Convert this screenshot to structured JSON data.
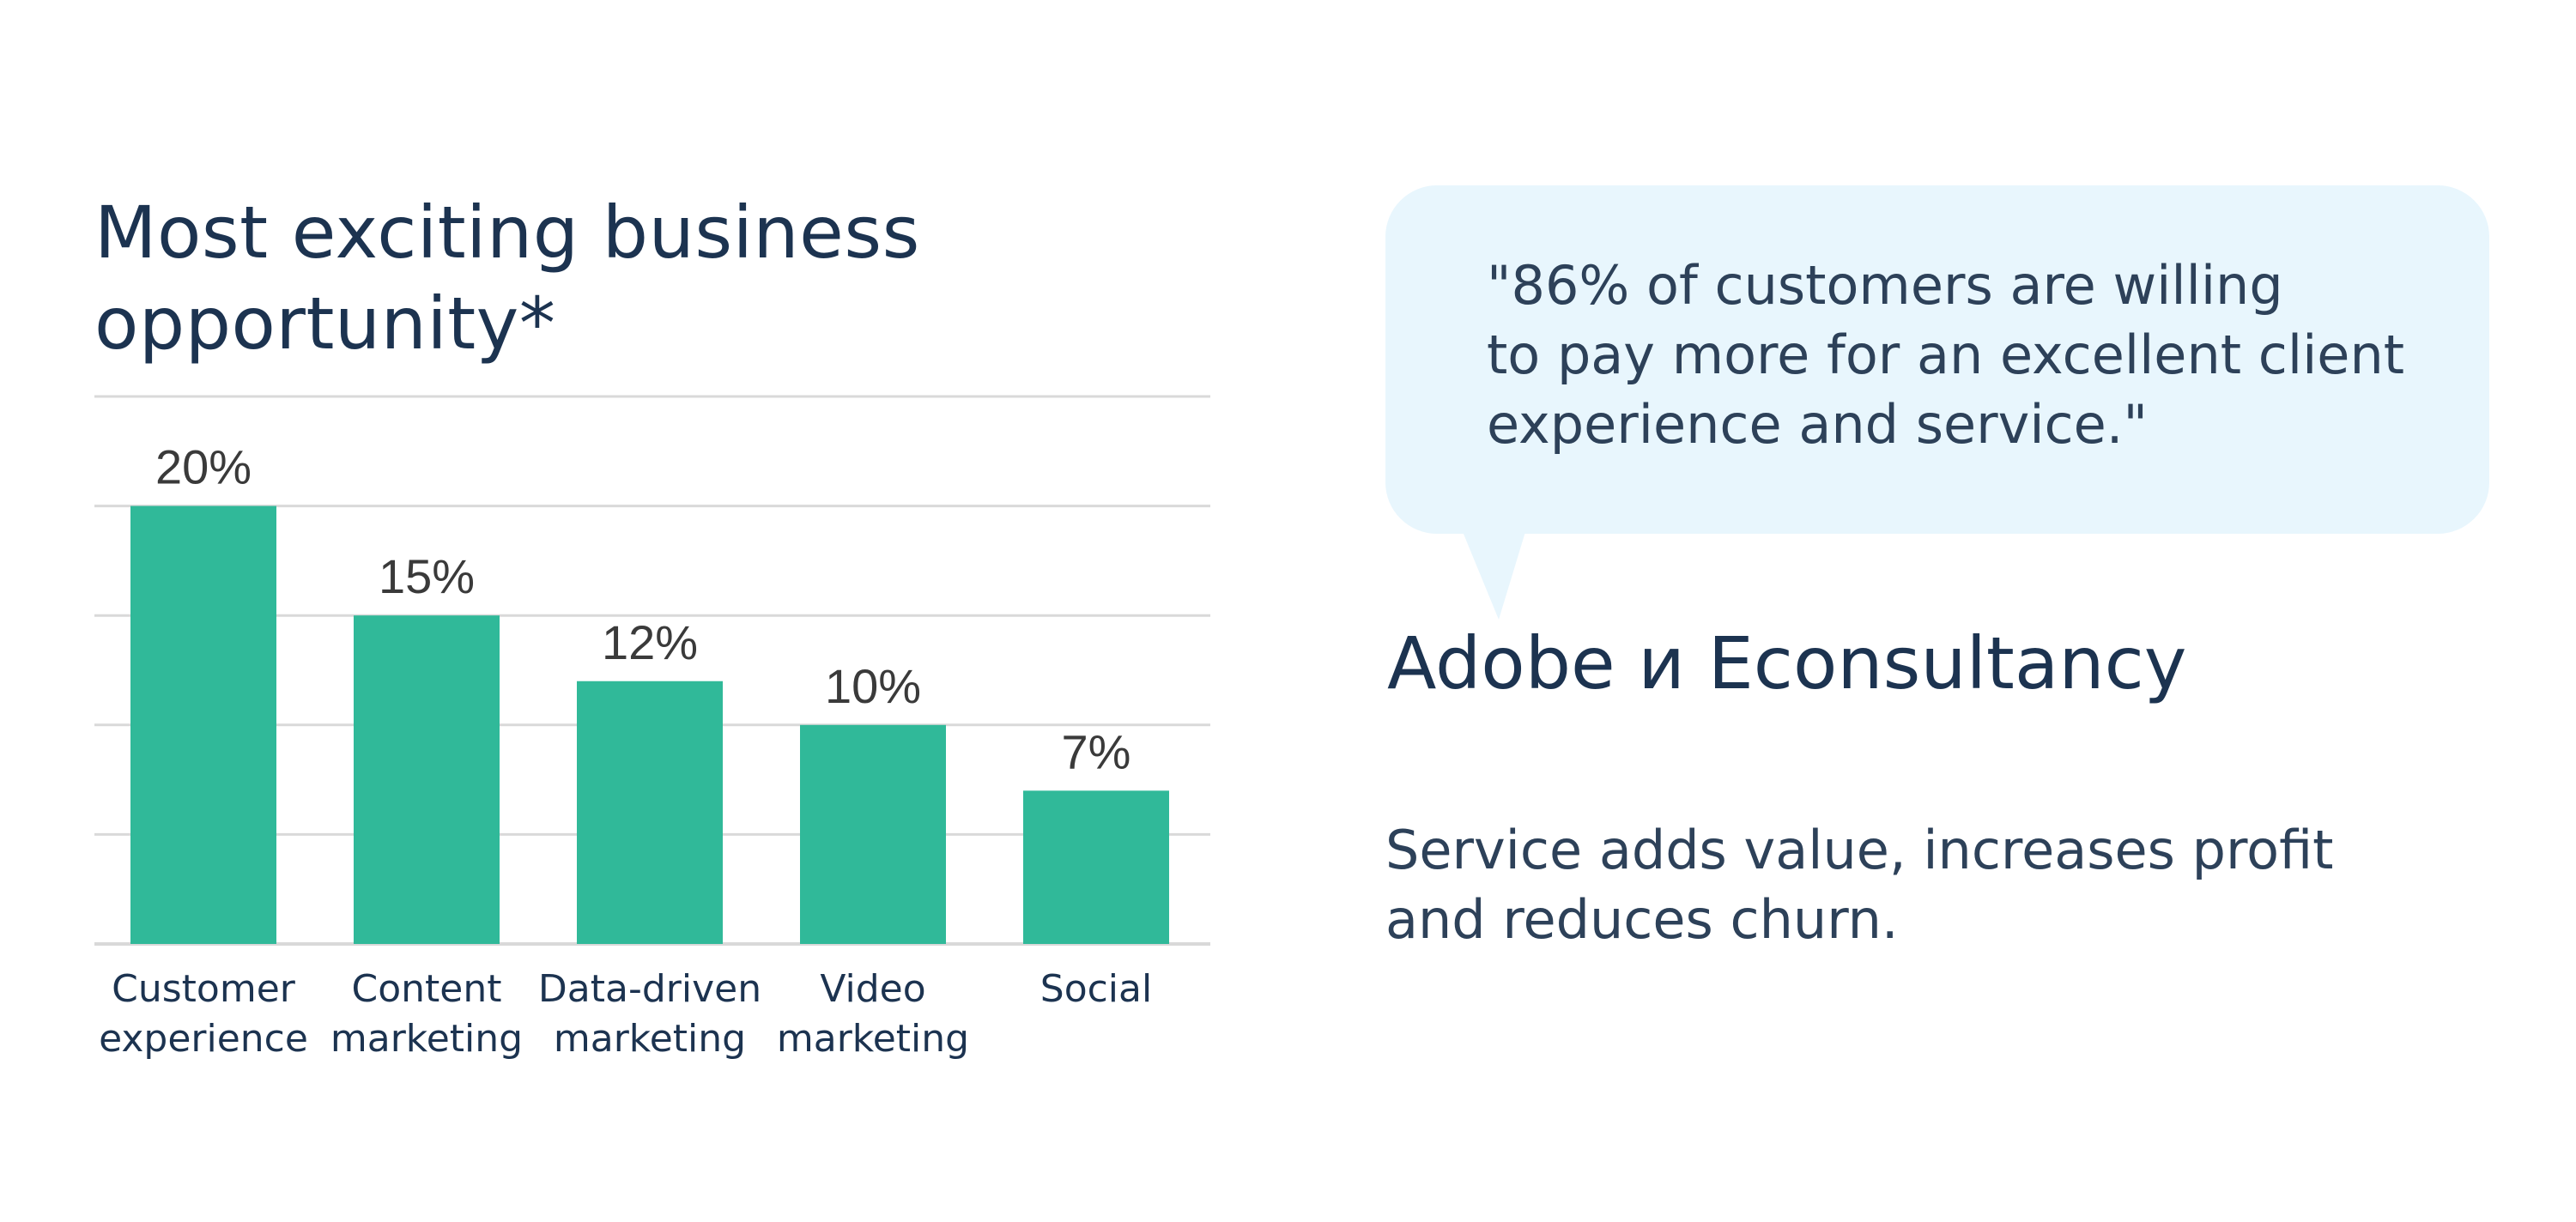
{
  "chart_data": {
    "type": "bar",
    "title": "Most exciting business\nopportunity*",
    "categories": [
      "Customer\nexperience",
      "Content\nmarketing",
      "Data-driven\nmarketing",
      "Video\nmarketing",
      "Social"
    ],
    "values": [
      20,
      15,
      12,
      10,
      7
    ],
    "value_labels": [
      "20%",
      "15%",
      "12%",
      "10%",
      "7%"
    ],
    "ylim": [
      0,
      25
    ],
    "grid": true,
    "bar_color": "#30b999",
    "grid_color": "#d9d9d9"
  },
  "quote": {
    "text": "\"86% of customers are willing\nto pay more for an excellent client\nexperience and service.\"",
    "background": "#e8f6fd"
  },
  "source": {
    "name": "Adobe и Econsultancy"
  },
  "description": {
    "text": "Service adds value, increases profit\nand reduces churn."
  }
}
